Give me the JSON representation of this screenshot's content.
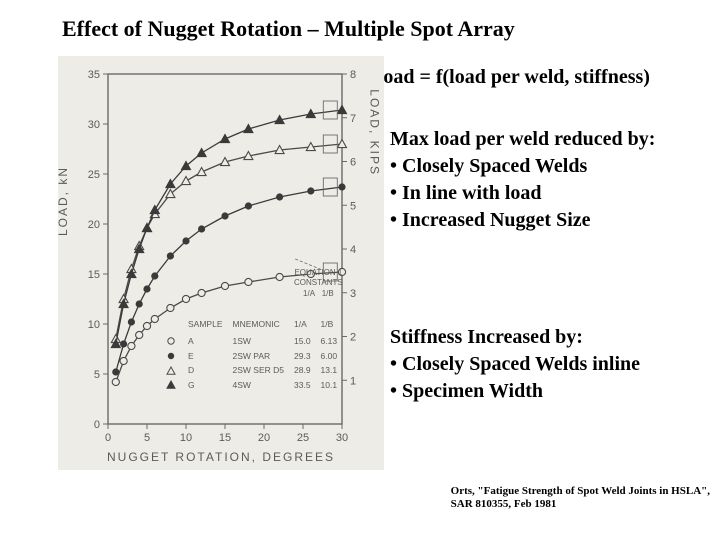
{
  "title": "Effect of Nugget Rotation – Multiple Spot Array",
  "load_equation": "Load = f(load per weld, stiffness)",
  "maxload": {
    "heading": "Max load per weld reduced by:",
    "bullets": [
      "Closely Spaced Welds",
      "In line with load",
      "Increased Nugget Size"
    ]
  },
  "stiffness": {
    "heading": "Stiffness Increased by:",
    "bullets": [
      "Closely Spaced Welds inline",
      "Specimen Width"
    ]
  },
  "citation": {
    "line1": "Orts, \"Fatigue Strength of Spot Weld Joints in HSLA\",",
    "line2": "SAR 810355, Feb 1981"
  },
  "chart": {
    "type": "line",
    "background_color": "#eeece6",
    "plot_bg": "#eeece6",
    "axis_color": "#6a6a6a",
    "grid_color": "#d8d6d0",
    "text_color": "#5b5b5b",
    "x_label": "NUGGET ROTATION, DEGREES",
    "y_label_left": "LOAD, kN",
    "y_label_right": "LOAD, KIPS",
    "xlim": [
      0,
      30
    ],
    "xtick_step": 5,
    "ylim_left": [
      0,
      35
    ],
    "ytick_left_step": 5,
    "ylim_right": [
      0,
      8
    ],
    "ytick_right_step": 1,
    "font_family": "Arial, sans-serif",
    "tick_fontsize": 11,
    "label_fontsize": 12,
    "series": [
      {
        "name": "A",
        "mnemonic": "1SW",
        "ia": "15.0",
        "ib": "6.13",
        "marker": "circle-open",
        "line": "solid",
        "color": "#4a4a4a",
        "data": [
          [
            1,
            4.2
          ],
          [
            2,
            6.3
          ],
          [
            3,
            7.8
          ],
          [
            4,
            8.9
          ],
          [
            5,
            9.8
          ],
          [
            6,
            10.5
          ],
          [
            8,
            11.6
          ],
          [
            10,
            12.5
          ],
          [
            12,
            13.1
          ],
          [
            15,
            13.8
          ],
          [
            18,
            14.2
          ],
          [
            22,
            14.7
          ],
          [
            26,
            15.0
          ],
          [
            30,
            15.2
          ]
        ]
      },
      {
        "name": "E",
        "mnemonic": "2SW PAR",
        "ia": "29.3",
        "ib": "6.00",
        "marker": "circle-filled",
        "line": "solid",
        "color": "#3a3a3a",
        "data": [
          [
            1,
            5.2
          ],
          [
            2,
            8.0
          ],
          [
            3,
            10.2
          ],
          [
            4,
            12.0
          ],
          [
            5,
            13.5
          ],
          [
            6,
            14.8
          ],
          [
            8,
            16.8
          ],
          [
            10,
            18.3
          ],
          [
            12,
            19.5
          ],
          [
            15,
            20.8
          ],
          [
            18,
            21.8
          ],
          [
            22,
            22.7
          ],
          [
            26,
            23.3
          ],
          [
            30,
            23.7
          ]
        ]
      },
      {
        "name": "D",
        "mnemonic": "2SW SER D5",
        "ia": "28.9",
        "ib": "13.1",
        "marker": "triangle-open",
        "line": "solid",
        "color": "#4a4a4a",
        "data": [
          [
            1,
            8.5
          ],
          [
            2,
            12.5
          ],
          [
            3,
            15.5
          ],
          [
            4,
            17.8
          ],
          [
            5,
            19.6
          ],
          [
            6,
            21.0
          ],
          [
            8,
            23.0
          ],
          [
            10,
            24.3
          ],
          [
            12,
            25.2
          ],
          [
            15,
            26.2
          ],
          [
            18,
            26.8
          ],
          [
            22,
            27.4
          ],
          [
            26,
            27.7
          ],
          [
            30,
            28.0
          ]
        ]
      },
      {
        "name": "G",
        "mnemonic": "4SW",
        "ia": "33.5",
        "ib": "10.1",
        "marker": "triangle-filled",
        "line": "solid",
        "color": "#3a3a3a",
        "data": [
          [
            1,
            8.0
          ],
          [
            2,
            12.0
          ],
          [
            3,
            15.0
          ],
          [
            4,
            17.5
          ],
          [
            5,
            19.6
          ],
          [
            6,
            21.4
          ],
          [
            8,
            24.0
          ],
          [
            10,
            25.8
          ],
          [
            12,
            27.1
          ],
          [
            15,
            28.5
          ],
          [
            18,
            29.5
          ],
          [
            22,
            30.4
          ],
          [
            26,
            31.0
          ],
          [
            30,
            31.4
          ]
        ]
      }
    ],
    "eq_label": {
      "line1": "EQUATION 1",
      "line2": "CONSTANTS",
      "col1": "1/A",
      "col2": "1/B"
    },
    "legend_headers": [
      "SAMPLE",
      "MNEMONIC",
      "1/A",
      "1/B"
    ],
    "endcap_x": 28.5,
    "line_width": 1.3,
    "marker_size": 3.6
  }
}
